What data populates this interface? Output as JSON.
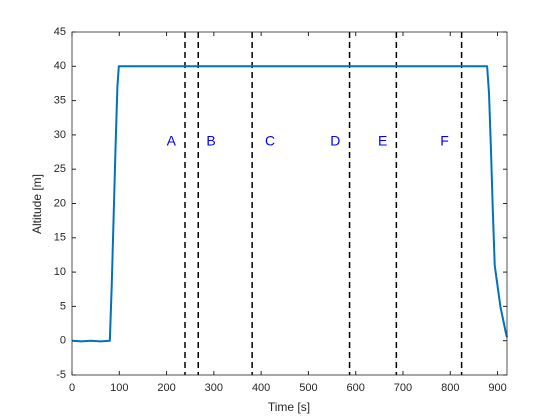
{
  "chart_data": {
    "type": "line",
    "xlabel": "Time [s]",
    "ylabel": "Altitude [m]",
    "series": [
      {
        "color": "#0072bd",
        "x": [
          0,
          20,
          40,
          60,
          80,
          84,
          88,
          92,
          96,
          99,
          150,
          250,
          350,
          450,
          550,
          650,
          750,
          850,
          878,
          882,
          886,
          890,
          894,
          900,
          906,
          912,
          918,
          920
        ],
        "values": [
          0,
          -0.1,
          0,
          -0.1,
          0,
          8,
          18,
          28,
          37,
          40,
          40,
          40,
          40,
          40,
          40,
          40,
          40,
          40,
          40,
          36,
          28,
          19,
          11,
          8,
          5,
          3,
          1,
          0.5
        ]
      }
    ],
    "vlines": [
      239,
      267,
      381,
      587,
      686,
      824
    ],
    "annotations": [
      {
        "text": "A",
        "x": 210,
        "y": 29
      },
      {
        "text": "B",
        "x": 294,
        "y": 29
      },
      {
        "text": "C",
        "x": 419,
        "y": 29
      },
      {
        "text": "D",
        "x": 557,
        "y": 29
      },
      {
        "text": "E",
        "x": 657,
        "y": 29
      },
      {
        "text": "F",
        "x": 788,
        "y": 29
      }
    ],
    "annotation_color": "#0000ff",
    "vline_color": "#000000",
    "xlim": [
      0,
      920
    ],
    "ylim": [
      -5,
      45
    ],
    "xticks": [
      0,
      100,
      200,
      300,
      400,
      500,
      600,
      700,
      800,
      900
    ],
    "yticks": [
      -5,
      0,
      5,
      10,
      15,
      20,
      25,
      30,
      35,
      40,
      45
    ]
  }
}
